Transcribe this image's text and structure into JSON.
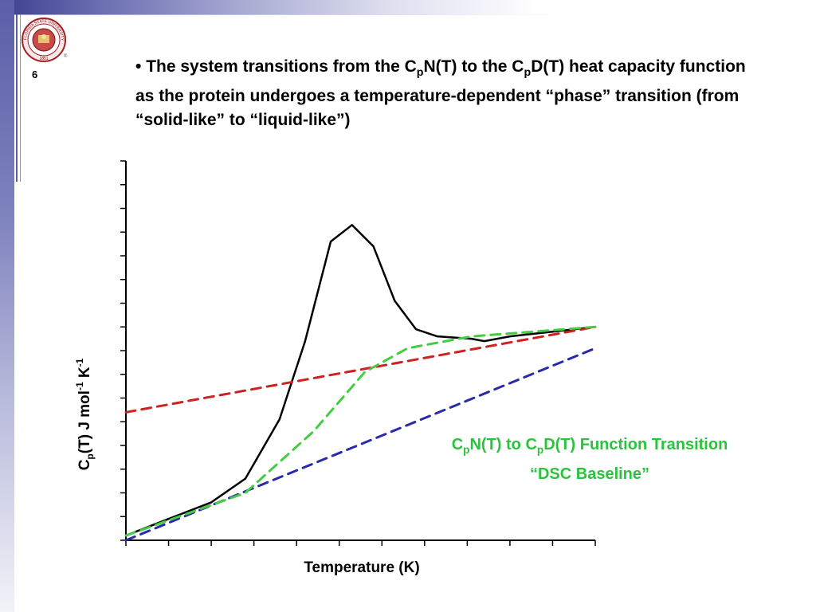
{
  "slide": {
    "number": "6",
    "logo_text": "FLORIDA STATE UNIVERSITY",
    "logo_year": "1851",
    "bullet": {
      "marker": "•",
      "p1": "The system transitions from the C",
      "p1_sub": "p",
      "p2": "N(T) to the C",
      "p2_sub": "p",
      "p3": "D(T) heat capacity function as the protein undergoes a temperature-dependent “phase” transition (from “solid-like” to “liquid-like”)"
    },
    "caption": {
      "line1_a": "C",
      "line1_sub_a": "p",
      "line1_b": "N(T) to C",
      "line1_sub_b": "p",
      "line1_c": "D(T) Function Transition",
      "line2": "“DSC Baseline”"
    }
  },
  "chart_data": {
    "type": "line",
    "xlabel": "Temperature (K)",
    "ylabel_parts": {
      "c": "C",
      "p_sub": "p",
      "mid": "(T) J mol",
      "sup1": "-1",
      "k": " K",
      "sup2": "-1"
    },
    "xlim": [
      0,
      11
    ],
    "ylim": [
      0,
      16
    ],
    "series": [
      {
        "name": "",
        "color": "#000000",
        "style": "solid",
        "x": [
          0,
          1,
          2,
          2.8,
          3.6,
          4.2,
          4.8,
          5.3,
          5.8,
          6.3,
          6.8,
          7.3,
          8.1,
          8.4,
          9.0,
          10,
          11
        ],
        "y": [
          0.2,
          0.9,
          1.6,
          2.6,
          5.1,
          8.4,
          12.6,
          13.3,
          12.4,
          10.1,
          8.9,
          8.6,
          8.5,
          8.4,
          8.6,
          8.8,
          9.0
        ]
      },
      {
        "name": "",
        "color": "#cc2222",
        "style": "dashed",
        "x": [
          0,
          11
        ],
        "y": [
          5.4,
          9.0
        ]
      },
      {
        "name": "",
        "color": "#2a2aaa",
        "style": "dashed",
        "x": [
          0,
          11
        ],
        "y": [
          0.0,
          8.1
        ]
      },
      {
        "name": "",
        "color": "#44cc44",
        "style": "dashed",
        "x": [
          0,
          2.8,
          4.4,
          5.6,
          6.6,
          8.1,
          11
        ],
        "y": [
          0.2,
          2.0,
          4.6,
          7.1,
          8.1,
          8.6,
          9.0
        ]
      }
    ]
  }
}
